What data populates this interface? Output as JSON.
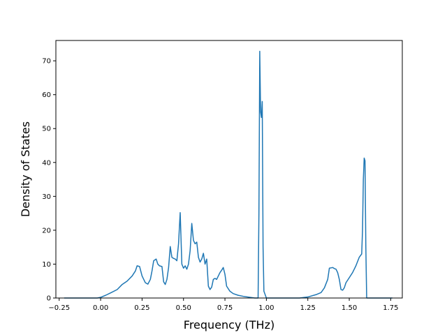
{
  "chart_data": {
    "type": "line",
    "title": "",
    "xlabel": "Frequency (THz)",
    "ylabel": "Density of States",
    "xlim": [
      -0.27,
      1.82
    ],
    "ylim": [
      0,
      76
    ],
    "xticks": [
      -0.25,
      0.0,
      0.25,
      0.5,
      0.75,
      1.0,
      1.25,
      1.5,
      1.75
    ],
    "xtick_labels": [
      "−0.25",
      "0.00",
      "0.25",
      "0.50",
      "0.75",
      "1.00",
      "1.25",
      "1.50",
      "1.75"
    ],
    "yticks": [
      0,
      10,
      20,
      30,
      40,
      50,
      60,
      70
    ],
    "ytick_labels": [
      "0",
      "10",
      "20",
      "30",
      "40",
      "50",
      "60",
      "70"
    ],
    "grid": false,
    "color": "#1f77b4",
    "series": [
      {
        "x": [
          -0.22,
          -0.1,
          -0.02,
          0.0,
          0.03,
          0.06,
          0.1,
          0.13,
          0.16,
          0.19,
          0.21,
          0.22,
          0.235,
          0.25,
          0.27,
          0.285,
          0.3,
          0.31,
          0.32,
          0.335,
          0.345,
          0.355,
          0.37,
          0.38,
          0.39,
          0.4,
          0.41,
          0.42,
          0.43,
          0.44,
          0.45,
          0.46,
          0.47,
          0.48,
          0.49,
          0.5,
          0.51,
          0.52,
          0.53,
          0.54,
          0.55,
          0.56,
          0.57,
          0.58,
          0.59,
          0.6,
          0.61,
          0.62,
          0.63,
          0.64,
          0.65,
          0.66,
          0.67,
          0.68,
          0.69,
          0.7,
          0.71,
          0.72,
          0.73,
          0.74,
          0.75,
          0.76,
          0.78,
          0.8,
          0.83,
          0.86,
          0.9,
          0.93,
          0.95,
          0.955,
          0.96,
          0.965,
          0.97,
          0.975,
          0.98,
          0.985,
          1.0,
          1.05,
          1.1,
          1.15,
          1.2,
          1.25,
          1.3,
          1.33,
          1.35,
          1.37,
          1.38,
          1.4,
          1.41,
          1.42,
          1.43,
          1.44,
          1.45,
          1.46,
          1.47,
          1.48,
          1.5,
          1.52,
          1.54,
          1.56,
          1.575,
          1.58,
          1.585,
          1.59,
          1.595,
          1.6,
          1.605,
          1.61,
          1.65,
          1.7,
          1.75,
          1.76
        ],
        "y": [
          0.0,
          0.0,
          0.0,
          0.2,
          0.8,
          1.5,
          2.5,
          4.0,
          5.0,
          6.5,
          8.0,
          9.5,
          9.3,
          6.5,
          4.5,
          4.1,
          5.5,
          8.0,
          11.0,
          11.5,
          10.0,
          9.5,
          9.3,
          4.8,
          4.0,
          5.5,
          9.0,
          15.2,
          12.0,
          11.7,
          11.5,
          11.0,
          16.0,
          25.2,
          10.0,
          8.8,
          9.5,
          8.5,
          10.0,
          14.0,
          22.0,
          17.0,
          16.0,
          16.5,
          12.0,
          10.6,
          11.5,
          13.2,
          10.0,
          11.5,
          3.5,
          2.5,
          3.2,
          5.5,
          5.8,
          5.5,
          6.5,
          7.5,
          8.2,
          9.0,
          7.0,
          3.5,
          2.0,
          1.3,
          0.8,
          0.5,
          0.2,
          0.0,
          0.0,
          25.0,
          72.8,
          55.0,
          53.3,
          58.0,
          15.0,
          2.0,
          0.0,
          0.0,
          0.0,
          0.0,
          0.0,
          0.3,
          1.0,
          1.6,
          3.0,
          5.5,
          8.8,
          9.0,
          8.7,
          8.5,
          7.5,
          5.5,
          2.5,
          2.3,
          3.0,
          4.5,
          6.0,
          7.5,
          9.5,
          12.0,
          13.0,
          20.0,
          35.0,
          41.3,
          40.5,
          15.0,
          0.0,
          0.0,
          0.0,
          0.0,
          0.0,
          0.0
        ]
      }
    ]
  }
}
